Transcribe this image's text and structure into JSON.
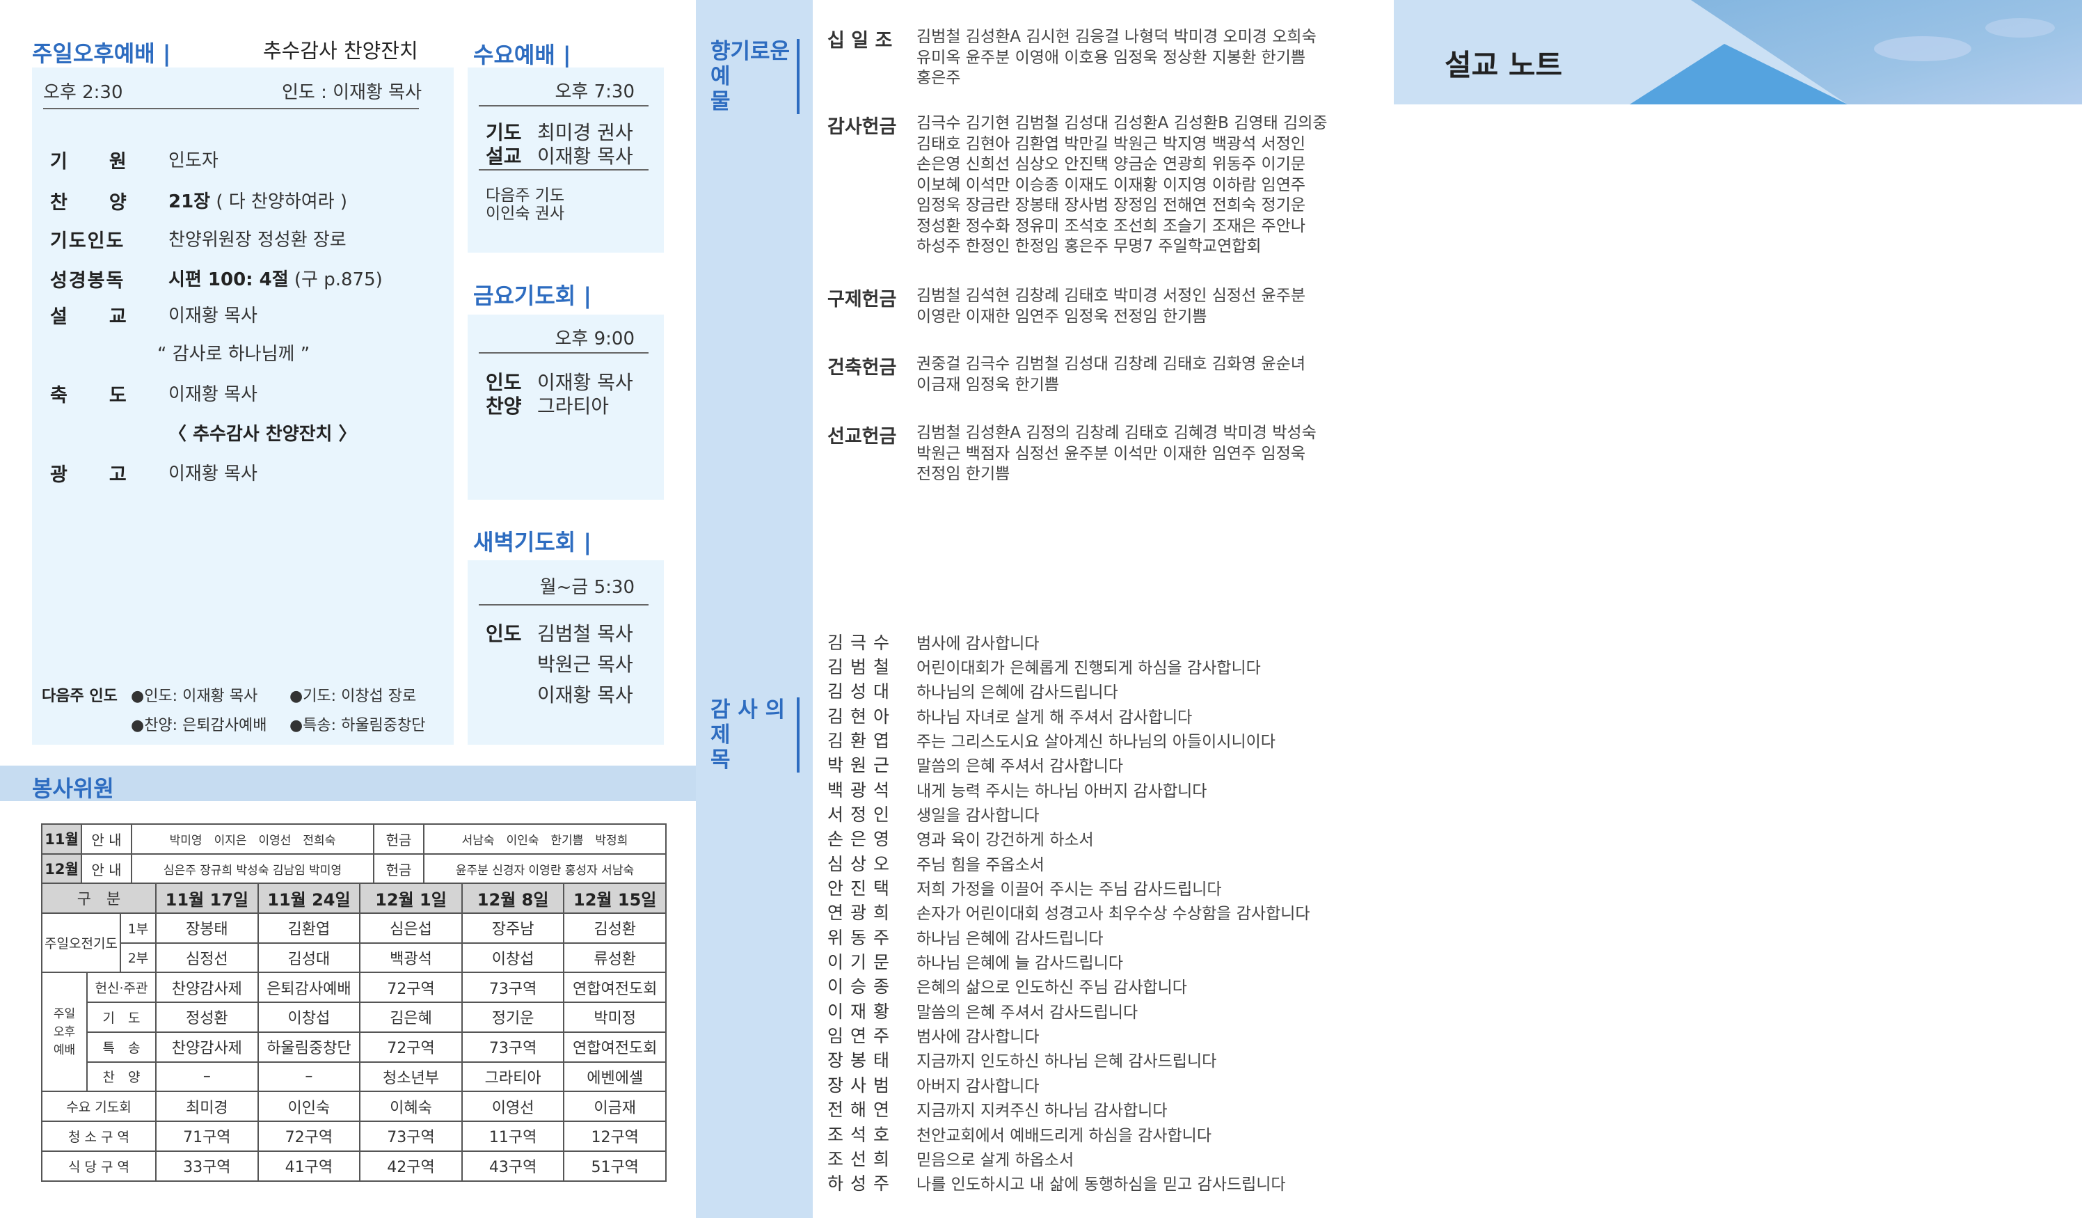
{
  "sunday_pm": {
    "title": "주일오후예배 |",
    "subtitle": "추수감사 찬양잔치",
    "time": "오후 2:30",
    "leader": "인도 : 이재황 목사",
    "items": [
      {
        "label": "기　　원",
        "value": "인도자"
      },
      {
        "label": "찬　　양",
        "value_bold": "21장",
        "value": " ( 다 찬양하여라 )"
      },
      {
        "label": "기도인도",
        "value": "찬양위원장 정성환 장로"
      },
      {
        "label": "성경봉독",
        "value_bold": "시편 100: 4절",
        "value": " (구 p.875)"
      },
      {
        "label": "설　　교",
        "value": "이재황 목사"
      },
      {
        "label": "",
        "value": "“ 감사로 하나님께 ”"
      },
      {
        "label": "축　　도",
        "value": "이재황 목사"
      },
      {
        "label": "",
        "value_bold": "〈 추수감사 찬양잔치 〉",
        "value": ""
      },
      {
        "label": "광　　고",
        "value": "이재황 목사"
      }
    ],
    "next_week_label": "다음주  인도",
    "next_week": [
      "●인도: 이재황 목사",
      "●기도: 이창섭 장로",
      "●찬양: 은퇴감사예배",
      "●특송: 하울림중창단"
    ]
  },
  "wednesday": {
    "title": "수요예배 |",
    "time": "오후 7:30",
    "rows": [
      {
        "label": "기도",
        "value": "최미경 권사"
      },
      {
        "label": "설교",
        "value": "이재황 목사"
      }
    ],
    "next_label": "다음주 기도",
    "next_value": "이인숙 권사"
  },
  "friday": {
    "title": "금요기도회 |",
    "time": "오후 9:00",
    "rows": [
      {
        "label": "인도",
        "value": "이재황 목사"
      },
      {
        "label": "찬양",
        "value": "그라티아"
      }
    ]
  },
  "dawn": {
    "title": "새벽기도회 |",
    "time": "월~금 5:30",
    "label": "인도",
    "values": [
      "김범철 목사",
      "박원근 목사",
      "이재황 목사"
    ]
  },
  "staff": {
    "title": "봉사위원",
    "monthly": [
      {
        "month": "11월",
        "guide_label": "안 내",
        "guide": "박미영　이지은　이영선　전희숙",
        "offering_label": "헌금",
        "offering": "서남숙　이인숙　한기쁨　박정희"
      },
      {
        "month": "12월",
        "guide_label": "안 내",
        "guide": "심은주 장규희 박성숙 김남임 박미영",
        "offering_label": "헌금",
        "offering": "윤주분 신경자 이영란 홍성자 서남숙"
      }
    ],
    "header_label": "구　분",
    "dates": [
      "11월 17일",
      "11월 24일",
      "12월 1일",
      "12월 8일",
      "12월 15일"
    ],
    "morning_group": "주일오전기도",
    "morning": [
      {
        "sub": "1부",
        "values": [
          "장봉태",
          "김환엽",
          "심은섭",
          "장주남",
          "김성환"
        ]
      },
      {
        "sub": "2부",
        "values": [
          "심정선",
          "김성대",
          "백광석",
          "이창섭",
          "류성환"
        ]
      }
    ],
    "afternoon_group": "주일\n오후\n예배",
    "afternoon": [
      {
        "sub": "헌신·주관",
        "values": [
          "찬양감사제",
          "은퇴감사예배",
          "72구역",
          "73구역",
          "연합여전도회"
        ]
      },
      {
        "sub": "기　도",
        "values": [
          "정성환",
          "이창섭",
          "김은혜",
          "정기운",
          "박미정"
        ]
      },
      {
        "sub": "특　송",
        "values": [
          "찬양감사제",
          "하울림중창단",
          "72구역",
          "73구역",
          "연합여전도회"
        ]
      },
      {
        "sub": "찬　양",
        "values": [
          "–",
          "–",
          "청소년부",
          "그라티아",
          "에벤에셀"
        ]
      }
    ],
    "others": [
      {
        "label": "수요 기도회",
        "values": [
          "최미경",
          "이인숙",
          "이혜숙",
          "이영선",
          "이금재"
        ]
      },
      {
        "label": "청 소 구 역",
        "values": [
          "71구역",
          "72구역",
          "73구역",
          "11구역",
          "12구역"
        ]
      },
      {
        "label": "식 당 구 역",
        "values": [
          "33구역",
          "41구역",
          "42구역",
          "43구역",
          "51구역"
        ]
      }
    ]
  },
  "offerings": {
    "title_lines": [
      "향기로운",
      "예　　물"
    ],
    "sections": [
      {
        "label": "십 일 조",
        "lines": [
          "김범철 김성환A 김시현 김응걸 나형덕 박미경 오미경 오희숙",
          "유미옥 윤주분 이영애 이호용 임정욱 정상환 지봉환 한기쁨",
          "홍은주"
        ]
      },
      {
        "label": "감사헌금",
        "lines": [
          "김극수 김기현 김범철 김성대 김성환A 김성환B 김영태 김의중",
          "김태호 김현아 김환엽 박만길 박원근 박지영 백광석 서정인",
          "손은영 신희선 심상오 안진택 양금순 연광희 위동주 이기문",
          "이보혜 이석만 이승종 이재도 이재황 이지영 이하람 임연주",
          "임정욱 장금란 장봉태 장사범 장정임 전해연 전희숙 정기운",
          "정성환 정수화 정유미 조석호 조선희 조슬기 조재은 주안나",
          "하성주 한정인 한정임 홍은주 무명7 주일학교연합회"
        ]
      },
      {
        "label": "구제헌금",
        "lines": [
          "김범철 김석현 김창례 김태호 박미경 서정인 심정선 윤주분",
          "이영란 이재한 임연주 임정욱 전정임 한기쁨"
        ]
      },
      {
        "label": "건축헌금",
        "lines": [
          "권중걸 김극수 김범철 김성대 김창례 김태호 김화영 윤순녀",
          "이금재 임정욱 한기쁨"
        ]
      },
      {
        "label": "선교헌금",
        "lines": [
          "김범철 김성환A 김정의 김창례 김태호 김혜경 박미경 박성숙",
          "박원근 백점자 심정선 윤주분 이석만 이재한 임연주 임정욱",
          "전정임 한기쁨"
        ]
      }
    ]
  },
  "thanks": {
    "title_lines": [
      "감 사 의",
      "제　　목"
    ],
    "items": [
      {
        "name": "김극수",
        "msg": "범사에 감사합니다"
      },
      {
        "name": "김범철",
        "msg": "어린이대회가 은혜롭게 진행되게 하심을 감사합니다"
      },
      {
        "name": "김성대",
        "msg": "하나님의 은혜에 감사드립니다"
      },
      {
        "name": "김현아",
        "msg": "하나님 자녀로 살게 해 주셔서 감사합니다"
      },
      {
        "name": "김환엽",
        "msg": "주는 그리스도시요 살아계신 하나님의 아들이시니이다"
      },
      {
        "name": "박원근",
        "msg": "말씀의 은혜 주셔서 감사합니다"
      },
      {
        "name": "백광석",
        "msg": "내게 능력 주시는 하나님 아버지 감사합니다"
      },
      {
        "name": "서정인",
        "msg": "생일을 감사합니다"
      },
      {
        "name": "손은영",
        "msg": "영과 육이 강건하게 하소서"
      },
      {
        "name": "심상오",
        "msg": "주님 힘을 주옵소서"
      },
      {
        "name": "안진택",
        "msg": "저희 가정을 이끌어 주시는 주님 감사드립니다"
      },
      {
        "name": "연광희",
        "msg": "손자가 어린이대회 성경고사 최우수상 수상함을 감사합니다"
      },
      {
        "name": "위동주",
        "msg": "하나님 은혜에 감사드립니다"
      },
      {
        "name": "이기문",
        "msg": "하나님 은혜에 늘 감사드립니다"
      },
      {
        "name": "이승종",
        "msg": "은혜의 삶으로 인도하신 주님 감사합니다"
      },
      {
        "name": "이재황",
        "msg": "말씀의 은혜 주셔서 감사드립니다"
      },
      {
        "name": "임연주",
        "msg": "범사에 감사합니다"
      },
      {
        "name": "장봉태",
        "msg": "지금까지 인도하신 하나님 은혜 감사드립니다"
      },
      {
        "name": "장사범",
        "msg": "아버지 감사합니다"
      },
      {
        "name": "전해연",
        "msg": "지금까지 지켜주신 하나님 감사합니다"
      },
      {
        "name": "조석호",
        "msg": "천안교회에서 예배드리게 하심을 감사합니다"
      },
      {
        "name": "조선희",
        "msg": "믿음으로 살게 하옵소서"
      },
      {
        "name": "하성주",
        "msg": "나를 인도하시고 내 삶에 동행하심을 믿고 감사드립니다"
      }
    ]
  },
  "sermon_note": {
    "title": "설교 노트"
  },
  "colors": {
    "accent": "#2d6cc0",
    "box": "#e9f5fd",
    "strip": "#cbe0f4",
    "banner_triangle": "#55a3df"
  }
}
